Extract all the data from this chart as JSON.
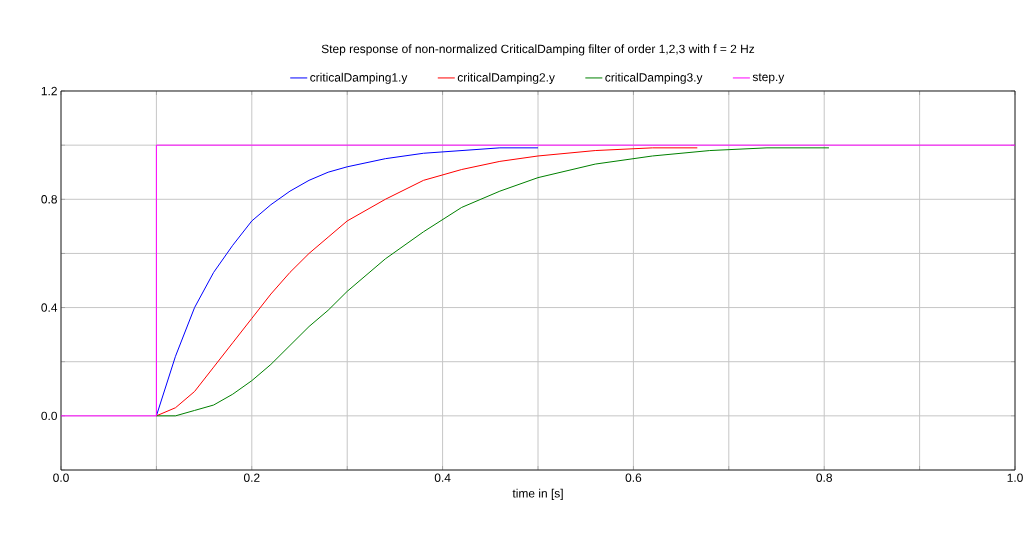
{
  "chart_data": {
    "type": "line",
    "title": "Step response of non-normalized CriticalDamping filter of order 1,2,3 with f = 2 Hz",
    "xlabel": "time in [s]",
    "series": [
      {
        "name": "criticalDamping1.y",
        "color": "#0000ff",
        "x": [
          0.1,
          0.12,
          0.14,
          0.16,
          0.18,
          0.2,
          0.22,
          0.24,
          0.26,
          0.28,
          0.3,
          0.34,
          0.38,
          0.42,
          0.46,
          0.5
        ],
        "values": [
          0,
          0.22,
          0.4,
          0.53,
          0.63,
          0.72,
          0.78,
          0.83,
          0.87,
          0.9,
          0.92,
          0.95,
          0.97,
          0.98,
          0.99,
          0.99
        ]
      },
      {
        "name": "criticalDamping2.y",
        "color": "#ff0000",
        "x": [
          0.1,
          0.12,
          0.14,
          0.16,
          0.18,
          0.2,
          0.22,
          0.24,
          0.26,
          0.28,
          0.3,
          0.34,
          0.38,
          0.42,
          0.46,
          0.5,
          0.56,
          0.62,
          0.667
        ],
        "values": [
          0,
          0.03,
          0.09,
          0.18,
          0.27,
          0.36,
          0.45,
          0.53,
          0.6,
          0.66,
          0.72,
          0.8,
          0.87,
          0.91,
          0.94,
          0.96,
          0.98,
          0.99,
          0.99
        ]
      },
      {
        "name": "criticalDamping3.y",
        "color": "#008000",
        "x": [
          0.1,
          0.12,
          0.14,
          0.16,
          0.18,
          0.2,
          0.22,
          0.24,
          0.26,
          0.28,
          0.3,
          0.34,
          0.38,
          0.42,
          0.46,
          0.5,
          0.56,
          0.62,
          0.68,
          0.74,
          0.805
        ],
        "values": [
          0,
          0.0,
          0.02,
          0.04,
          0.08,
          0.13,
          0.19,
          0.26,
          0.33,
          0.39,
          0.46,
          0.58,
          0.68,
          0.77,
          0.83,
          0.88,
          0.93,
          0.96,
          0.98,
          0.99,
          0.99
        ]
      },
      {
        "name": "step.y",
        "color": "#ff00ff",
        "x": [
          0,
          0.1,
          0.1,
          1
        ],
        "values": [
          0,
          0,
          1,
          1
        ]
      }
    ],
    "xlim": [
      0,
      1
    ],
    "ylim": [
      -0.2,
      1.2
    ],
    "xticks": [
      {
        "value": 0,
        "label": "0.0"
      },
      {
        "value": 0.1,
        "label": null
      },
      {
        "value": 0.2,
        "label": "0.2"
      },
      {
        "value": 0.3,
        "label": null
      },
      {
        "value": 0.4,
        "label": "0.4"
      },
      {
        "value": 0.5,
        "label": null
      },
      {
        "value": 0.6,
        "label": "0.6"
      },
      {
        "value": 0.7,
        "label": null
      },
      {
        "value": 0.8,
        "label": "0.8"
      },
      {
        "value": 0.9,
        "label": null
      },
      {
        "value": 1,
        "label": "1.0"
      }
    ],
    "yticks": [
      {
        "value": -0.2,
        "label": null
      },
      {
        "value": 0,
        "label": "0.0"
      },
      {
        "value": 0.2,
        "label": null
      },
      {
        "value": 0.4,
        "label": "0.4"
      },
      {
        "value": 0.6,
        "label": null
      },
      {
        "value": 0.8,
        "label": "0.8"
      },
      {
        "value": 1,
        "label": null
      },
      {
        "value": 1.2,
        "label": "1.2"
      }
    ],
    "grid": true,
    "legend": "top",
    "marker": "none",
    "line_style": "solid"
  }
}
